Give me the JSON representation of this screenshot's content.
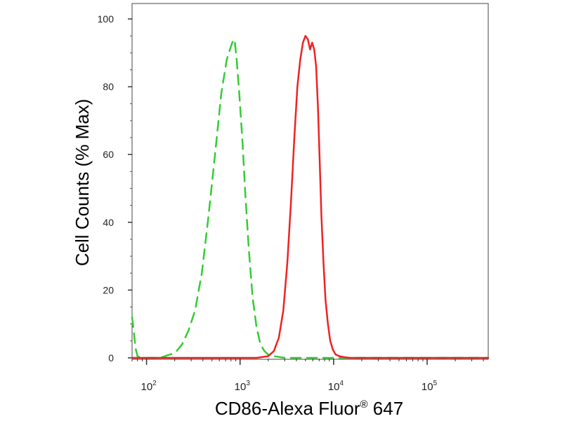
{
  "chart_data": {
    "type": "line",
    "title": "",
    "xlabel": "CD86-Alexa Fluor",
    "xlabel_mark": "®",
    "xlabel_suffix": " 647",
    "ylabel": "Cell Counts (% Max)",
    "x_scale": "log",
    "xlim": [
      70,
      450000
    ],
    "ylim": [
      0,
      100
    ],
    "y_ticks": [
      0,
      20,
      40,
      60,
      80,
      100
    ],
    "x_ticks": [
      {
        "value": 100,
        "base": "10",
        "exp": "2"
      },
      {
        "value": 1000,
        "base": "10",
        "exp": "3"
      },
      {
        "value": 10000,
        "base": "10",
        "exp": "4"
      },
      {
        "value": 100000,
        "base": "10",
        "exp": "5"
      }
    ],
    "grid": false,
    "legend": "none",
    "series": [
      {
        "color": "#33cc33",
        "style": "dashed",
        "x": [
          70,
          73,
          76,
          80,
          86,
          95,
          110,
          130,
          150,
          170,
          190,
          210,
          240,
          280,
          330,
          390,
          460,
          540,
          630,
          720,
          800,
          850,
          880,
          920,
          980,
          1060,
          1140,
          1240,
          1360,
          1500,
          1650,
          1820,
          2000,
          2300,
          3000,
          5000,
          10000,
          450000
        ],
        "y": [
          12,
          8,
          3,
          0.5,
          0,
          0,
          0,
          0,
          0.3,
          0.8,
          1.2,
          2,
          4,
          8,
          14,
          25,
          42,
          60,
          78,
          88,
          92,
          94,
          93,
          88,
          78,
          64,
          48,
          32,
          18,
          9,
          4,
          2,
          1,
          0.5,
          0,
          0,
          0,
          0
        ]
      },
      {
        "color": "#ee2222",
        "style": "solid",
        "x": [
          70,
          1000,
          1500,
          2000,
          2300,
          2600,
          2900,
          3200,
          3500,
          3800,
          4100,
          4400,
          4700,
          5000,
          5300,
          5600,
          5900,
          6200,
          6500,
          6800,
          7100,
          7400,
          7800,
          8200,
          8700,
          9200,
          9800,
          10500,
          11500,
          13000,
          15000,
          20000,
          450000
        ],
        "y": [
          0,
          0,
          0,
          0.5,
          2,
          6,
          14,
          28,
          46,
          65,
          80,
          88,
          93,
          95,
          94,
          91,
          93,
          91,
          86,
          74,
          58,
          42,
          28,
          17,
          10,
          5,
          2.5,
          1,
          0.5,
          0.2,
          0,
          0,
          0
        ]
      }
    ]
  }
}
